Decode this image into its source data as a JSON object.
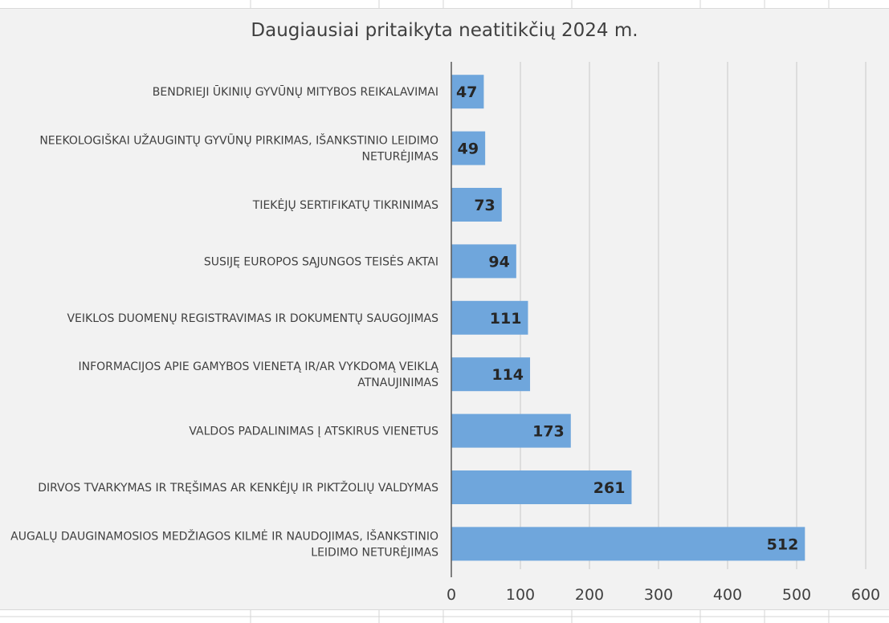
{
  "chart_data": {
    "type": "bar",
    "orientation": "horizontal",
    "title": "Daugiausiai pritaikyta neatitikčių 2024 m.",
    "xlabel": "",
    "ylabel": "",
    "xlim": [
      0,
      600
    ],
    "x_ticks": [
      0,
      100,
      200,
      300,
      400,
      500,
      600
    ],
    "grid": true,
    "legend": "none",
    "bar_color": "#6fa6dc",
    "categories": [
      [
        "BENDRIEJI ŪKINIŲ GYVŪNŲ  MITYBOS REIKALAVIMAI"
      ],
      [
        "NEEKOLOGIŠKAI UŽAUGINTŲ GYVŪNŲ PIRKIMAS, IŠANKSTINIO LEIDIMO",
        "NETURĖJIMAS"
      ],
      [
        "TIEKĖJŲ SERTIFIKATŲ TIKRINIMAS"
      ],
      [
        "SUSIJĘ EUROPOS SĄJUNGOS TEISĖS AKTAI"
      ],
      [
        "VEIKLOS DUOMENŲ REGISTRAVIMAS IR DOKUMENTŲ SAUGOJIMAS"
      ],
      [
        "INFORMACIJOS APIE GAMYBOS VIENETĄ IR/AR VYKDOMĄ VEIKLĄ",
        "ATNAUJINIMAS"
      ],
      [
        "VALDOS PADALINIMAS Į ATSKIRUS VIENETUS"
      ],
      [
        "DIRVOS TVARKYMAS IR TRĘŠIMAS AR KENKĖJŲ IR PIKTŽOLIŲ VALDYMAS"
      ],
      [
        "AUGALŲ DAUGINAMOSIOS MEDŽIAGOS KILMĖ IR NAUDOJIMAS, IŠANKSTINIO",
        "LEIDIMO NETURĖJIMAS"
      ]
    ],
    "values": [
      47,
      49,
      73,
      94,
      111,
      114,
      173,
      261,
      512
    ]
  }
}
